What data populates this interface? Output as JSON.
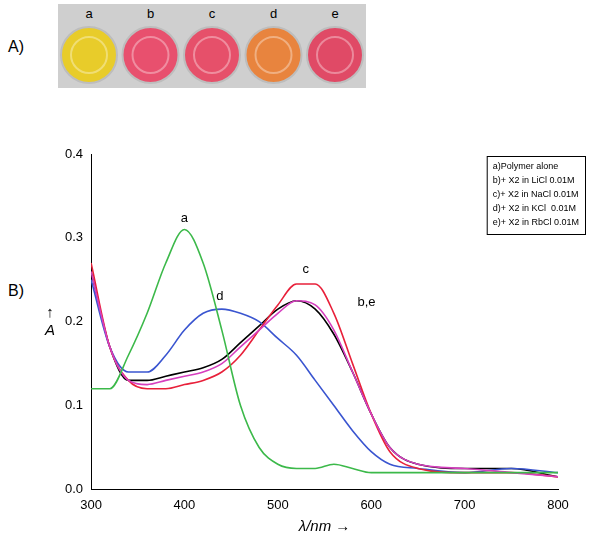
{
  "photo": {
    "panel_label": "A)",
    "wells": [
      {
        "label": "a",
        "color": "#e8cc2a"
      },
      {
        "label": "b",
        "color": "#e8506e"
      },
      {
        "label": "c",
        "color": "#e6506a"
      },
      {
        "label": "d",
        "color": "#e8843e"
      },
      {
        "label": "e",
        "color": "#e04a66"
      }
    ]
  },
  "chart_data": {
    "panel_label": "B)",
    "type": "line",
    "x_label": "λ/nm →",
    "y_label": "↑A",
    "x": [
      300,
      320,
      340,
      360,
      380,
      400,
      420,
      440,
      460,
      480,
      500,
      520,
      540,
      560,
      580,
      600,
      620,
      650,
      700,
      750,
      800
    ],
    "xlim": [
      300,
      800
    ],
    "xticks": [
      300,
      400,
      500,
      600,
      700,
      800
    ],
    "ylim": [
      0,
      0.4
    ],
    "yticks": [
      {
        "value": 0,
        "label": "0.0"
      },
      0.1,
      0.2,
      0.3,
      0.4
    ],
    "grid": false,
    "legend": "upper right",
    "series": [
      {
        "name": "a)Polymer alone",
        "color": "#3cb94a",
        "values": [
          0.12,
          0.12,
          0.16,
          0.21,
          0.27,
          0.31,
          0.27,
          0.19,
          0.1,
          0.05,
          0.03,
          0.025,
          0.025,
          0.03,
          0.025,
          0.02,
          0.02,
          0.02,
          0.02,
          0.02,
          0.02
        ]
      },
      {
        "name": "b)+ X2 in LiCl 0.01M",
        "color": "#d63fbf",
        "values": [
          0.26,
          0.17,
          0.13,
          0.125,
          0.13,
          0.135,
          0.14,
          0.15,
          0.17,
          0.19,
          0.21,
          0.225,
          0.22,
          0.19,
          0.14,
          0.09,
          0.05,
          0.03,
          0.025,
          0.02,
          0.015
        ]
      },
      {
        "name": "c)+ X2 in NaCl 0.01M",
        "color": "#e8203a",
        "values": [
          0.27,
          0.17,
          0.13,
          0.12,
          0.12,
          0.125,
          0.13,
          0.14,
          0.16,
          0.19,
          0.22,
          0.245,
          0.245,
          0.21,
          0.15,
          0.09,
          0.045,
          0.025,
          0.02,
          0.02,
          0.015
        ]
      },
      {
        "name": "d)+ X2 in KCl  0.01M",
        "color": "#3a55d0",
        "values": [
          0.25,
          0.17,
          0.14,
          0.14,
          0.16,
          0.19,
          0.21,
          0.215,
          0.21,
          0.2,
          0.18,
          0.16,
          0.13,
          0.1,
          0.07,
          0.045,
          0.03,
          0.025,
          0.02,
          0.025,
          0.02
        ]
      },
      {
        "name": "e)+ X2 in RbCl 0.01M",
        "color": "#000000",
        "values": [
          0.26,
          0.17,
          0.13,
          0.13,
          0.135,
          0.14,
          0.145,
          0.155,
          0.175,
          0.195,
          0.215,
          0.225,
          0.215,
          0.185,
          0.14,
          0.09,
          0.05,
          0.03,
          0.025,
          0.025,
          0.015
        ]
      }
    ],
    "annotations": [
      {
        "text": "a",
        "x": 400,
        "y": 0.315
      },
      {
        "text": "d",
        "x": 438,
        "y": 0.222
      },
      {
        "text": "c",
        "x": 530,
        "y": 0.255
      },
      {
        "text": "b,e",
        "x": 595,
        "y": 0.215
      }
    ]
  }
}
